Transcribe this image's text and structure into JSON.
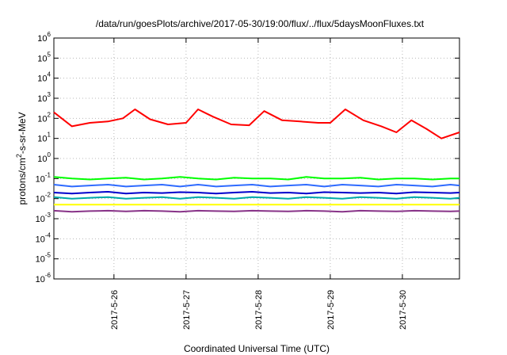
{
  "chart_data": {
    "type": "line",
    "title": "/data/run/goesPlots/archive/2017-05-30/19:00/flux/../flux/5daysMoonFluxes.txt",
    "xlabel": "Coordinated Universal Time (UTC)",
    "ylabel": {
      "prefix": "protons/cm",
      "superscript": "2",
      "suffix": "-s-sr-MeV"
    },
    "yscale": "log",
    "ylim": [
      1e-06,
      1000000.0
    ],
    "y_ticks": [
      {
        "base": "10",
        "exp": "-6",
        "value": 1e-06
      },
      {
        "base": "10",
        "exp": "-5",
        "value": 1e-05
      },
      {
        "base": "10",
        "exp": "-4",
        "value": 0.0001
      },
      {
        "base": "10",
        "exp": "-3",
        "value": 0.001
      },
      {
        "base": "10",
        "exp": "-2",
        "value": 0.01
      },
      {
        "base": "10",
        "exp": "-1",
        "value": 0.1
      },
      {
        "base": "10",
        "exp": "0",
        "value": 1
      },
      {
        "base": "10",
        "exp": "1",
        "value": 10
      },
      {
        "base": "10",
        "exp": "2",
        "value": 100
      },
      {
        "base": "10",
        "exp": "3",
        "value": 1000
      },
      {
        "base": "10",
        "exp": "4",
        "value": 10000
      },
      {
        "base": "10",
        "exp": "5",
        "value": 100000
      },
      {
        "base": "10",
        "exp": "6",
        "value": 1000000
      }
    ],
    "xlim": [
      "2017-05-25 04:00",
      "2017-05-30 19:00"
    ],
    "x_ticks": [
      {
        "label": "2017-5-26",
        "value": "2017-05-26 00:00"
      },
      {
        "label": "2017-5-27",
        "value": "2017-05-27 00:00"
      },
      {
        "label": "2017-5-28",
        "value": "2017-05-28 00:00"
      },
      {
        "label": "2017-5-29",
        "value": "2017-05-29 00:00"
      },
      {
        "label": "2017-5-30",
        "value": "2017-05-30 00:00"
      }
    ],
    "grid": true,
    "series": [
      {
        "color": "#ff0000",
        "x": [
          "2017-05-25 04:00",
          "2017-05-25 10:00",
          "2017-05-25 16:00",
          "2017-05-25 22:00",
          "2017-05-26 03:00",
          "2017-05-26 07:00",
          "2017-05-26 12:00",
          "2017-05-26 18:00",
          "2017-05-27 00:00",
          "2017-05-27 04:00",
          "2017-05-27 09:00",
          "2017-05-27 15:00",
          "2017-05-27 21:00",
          "2017-05-28 02:00",
          "2017-05-28 08:00",
          "2017-05-28 14:00",
          "2017-05-28 20:00",
          "2017-05-29 00:00",
          "2017-05-29 05:00",
          "2017-05-29 11:00",
          "2017-05-29 17:00",
          "2017-05-29 22:00",
          "2017-05-30 03:00",
          "2017-05-30 08:00",
          "2017-05-30 13:00",
          "2017-05-30 19:00"
        ],
        "y": [
          200,
          40,
          60,
          70,
          100,
          280,
          90,
          50,
          60,
          280,
          120,
          50,
          45,
          230,
          80,
          70,
          60,
          60,
          280,
          80,
          40,
          20,
          80,
          30,
          10,
          20
        ]
      },
      {
        "color": "#00ff00",
        "x": [
          "2017-05-25 04:00",
          "2017-05-25 10:00",
          "2017-05-25 16:00",
          "2017-05-25 22:00",
          "2017-05-26 04:00",
          "2017-05-26 10:00",
          "2017-05-26 16:00",
          "2017-05-26 22:00",
          "2017-05-27 04:00",
          "2017-05-27 10:00",
          "2017-05-27 16:00",
          "2017-05-27 22:00",
          "2017-05-28 04:00",
          "2017-05-28 10:00",
          "2017-05-28 16:00",
          "2017-05-28 22:00",
          "2017-05-29 04:00",
          "2017-05-29 10:00",
          "2017-05-29 16:00",
          "2017-05-29 22:00",
          "2017-05-30 04:00",
          "2017-05-30 10:00",
          "2017-05-30 16:00",
          "2017-05-30 19:00"
        ],
        "y": [
          0.12,
          0.1,
          0.09,
          0.1,
          0.11,
          0.09,
          0.1,
          0.12,
          0.1,
          0.09,
          0.11,
          0.1,
          0.1,
          0.09,
          0.12,
          0.1,
          0.1,
          0.11,
          0.09,
          0.1,
          0.1,
          0.09,
          0.1,
          0.1
        ]
      },
      {
        "color": "#2f6bff",
        "x": [
          "2017-05-25 04:00",
          "2017-05-25 10:00",
          "2017-05-25 16:00",
          "2017-05-25 22:00",
          "2017-05-26 04:00",
          "2017-05-26 10:00",
          "2017-05-26 16:00",
          "2017-05-26 22:00",
          "2017-05-27 04:00",
          "2017-05-27 10:00",
          "2017-05-27 16:00",
          "2017-05-27 22:00",
          "2017-05-28 04:00",
          "2017-05-28 10:00",
          "2017-05-28 16:00",
          "2017-05-28 22:00",
          "2017-05-29 04:00",
          "2017-05-29 10:00",
          "2017-05-29 16:00",
          "2017-05-29 22:00",
          "2017-05-30 04:00",
          "2017-05-30 10:00",
          "2017-05-30 16:00",
          "2017-05-30 19:00"
        ],
        "y": [
          0.05,
          0.04,
          0.045,
          0.05,
          0.04,
          0.045,
          0.05,
          0.04,
          0.05,
          0.04,
          0.045,
          0.05,
          0.04,
          0.045,
          0.05,
          0.04,
          0.05,
          0.045,
          0.04,
          0.05,
          0.045,
          0.04,
          0.05,
          0.045
        ]
      },
      {
        "color": "#0000cc",
        "x": [
          "2017-05-25 04:00",
          "2017-05-25 10:00",
          "2017-05-25 16:00",
          "2017-05-25 22:00",
          "2017-05-26 04:00",
          "2017-05-26 10:00",
          "2017-05-26 16:00",
          "2017-05-26 22:00",
          "2017-05-27 04:00",
          "2017-05-27 10:00",
          "2017-05-27 16:00",
          "2017-05-27 22:00",
          "2017-05-28 04:00",
          "2017-05-28 10:00",
          "2017-05-28 16:00",
          "2017-05-28 22:00",
          "2017-05-29 04:00",
          "2017-05-29 10:00",
          "2017-05-29 16:00",
          "2017-05-29 22:00",
          "2017-05-30 04:00",
          "2017-05-30 10:00",
          "2017-05-30 16:00",
          "2017-05-30 19:00"
        ],
        "y": [
          0.02,
          0.018,
          0.02,
          0.022,
          0.018,
          0.02,
          0.019,
          0.021,
          0.02,
          0.018,
          0.02,
          0.022,
          0.019,
          0.02,
          0.018,
          0.021,
          0.02,
          0.019,
          0.02,
          0.018,
          0.021,
          0.02,
          0.019,
          0.02
        ]
      },
      {
        "color": "#00aaaa",
        "x": [
          "2017-05-25 04:00",
          "2017-05-25 10:00",
          "2017-05-25 16:00",
          "2017-05-25 22:00",
          "2017-05-26 04:00",
          "2017-05-26 10:00",
          "2017-05-26 16:00",
          "2017-05-26 22:00",
          "2017-05-27 04:00",
          "2017-05-27 10:00",
          "2017-05-27 16:00",
          "2017-05-27 22:00",
          "2017-05-28 04:00",
          "2017-05-28 10:00",
          "2017-05-28 16:00",
          "2017-05-28 22:00",
          "2017-05-29 04:00",
          "2017-05-29 10:00",
          "2017-05-29 16:00",
          "2017-05-29 22:00",
          "2017-05-30 04:00",
          "2017-05-30 10:00",
          "2017-05-30 16:00",
          "2017-05-30 19:00"
        ],
        "y": [
          0.012,
          0.01,
          0.011,
          0.012,
          0.01,
          0.011,
          0.012,
          0.01,
          0.012,
          0.011,
          0.01,
          0.012,
          0.011,
          0.01,
          0.012,
          0.011,
          0.01,
          0.012,
          0.011,
          0.01,
          0.012,
          0.011,
          0.01,
          0.011
        ]
      },
      {
        "color": "#ffff00",
        "x": [
          "2017-05-25 04:00",
          "2017-05-25 16:00",
          "2017-05-26 04:00",
          "2017-05-26 16:00",
          "2017-05-27 04:00",
          "2017-05-27 16:00",
          "2017-05-28 04:00",
          "2017-05-28 16:00",
          "2017-05-29 04:00",
          "2017-05-29 16:00",
          "2017-05-30 04:00",
          "2017-05-30 19:00"
        ],
        "y": [
          0.005,
          0.005,
          0.005,
          0.005,
          0.005,
          0.005,
          0.005,
          0.005,
          0.005,
          0.005,
          0.005,
          0.005
        ]
      },
      {
        "color": "#883388",
        "x": [
          "2017-05-25 04:00",
          "2017-05-25 10:00",
          "2017-05-25 16:00",
          "2017-05-25 22:00",
          "2017-05-26 04:00",
          "2017-05-26 10:00",
          "2017-05-26 16:00",
          "2017-05-26 22:00",
          "2017-05-27 04:00",
          "2017-05-27 10:00",
          "2017-05-27 16:00",
          "2017-05-27 22:00",
          "2017-05-28 04:00",
          "2017-05-28 10:00",
          "2017-05-28 16:00",
          "2017-05-28 22:00",
          "2017-05-29 04:00",
          "2017-05-29 10:00",
          "2017-05-29 16:00",
          "2017-05-29 22:00",
          "2017-05-30 04:00",
          "2017-05-30 10:00",
          "2017-05-30 16:00",
          "2017-05-30 19:00"
        ],
        "y": [
          0.0025,
          0.0022,
          0.0024,
          0.0025,
          0.0023,
          0.0025,
          0.0024,
          0.0022,
          0.0025,
          0.0024,
          0.0023,
          0.0025,
          0.0024,
          0.0023,
          0.0025,
          0.0024,
          0.0022,
          0.0025,
          0.0024,
          0.0023,
          0.0025,
          0.0024,
          0.0023,
          0.0024
        ]
      }
    ]
  }
}
